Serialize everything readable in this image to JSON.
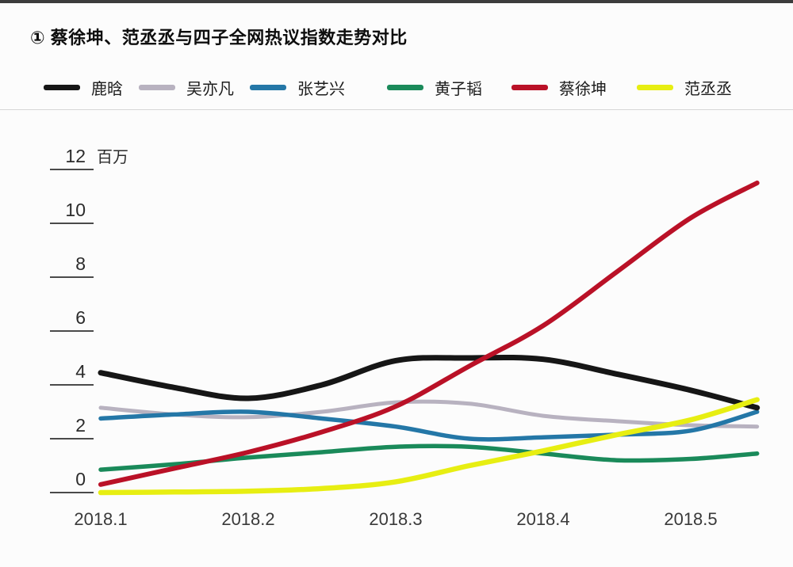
{
  "title": "① 蔡徐坤、范丞丞与四子全网热议指数走势对比",
  "legend": [
    {
      "label": "鹿晗",
      "color": "#161616"
    },
    {
      "label": "吴亦凡",
      "color": "#b8b2c0"
    },
    {
      "label": "张艺兴",
      "color": "#2477a7"
    },
    {
      "label": "黄子韬",
      "color": "#1a8a5a"
    },
    {
      "label": "蔡徐坤",
      "color": "#ba1127"
    },
    {
      "label": "范丞丞",
      "color": "#e7ee12"
    }
  ],
  "chart_data": {
    "type": "line",
    "title": "蔡徐坤、范丞丞与四子全网热议指数走势对比",
    "unit_label": "百万",
    "x": [
      2018.1,
      2018.15,
      2018.2,
      2018.25,
      2018.3,
      2018.35,
      2018.4,
      2018.45,
      2018.5,
      2018.55
    ],
    "x_tick_labels": [
      "2018.1",
      "2018.2",
      "2018.3",
      "2018.4",
      "2018.5"
    ],
    "y_ticks": [
      "0",
      "2",
      "4",
      "6",
      "8",
      "10",
      "12"
    ],
    "ylim": [
      0,
      12
    ],
    "grid": "left-ticks-only",
    "legend_position": "top",
    "series": [
      {
        "name": "鹿晗",
        "color": "#161616",
        "width": 7,
        "values": [
          4.45,
          3.9,
          3.5,
          4.0,
          4.9,
          5.0,
          4.95,
          4.4,
          3.8,
          3.15
        ]
      },
      {
        "name": "吴亦凡",
        "color": "#b8b2c0",
        "width": 5,
        "values": [
          3.15,
          2.9,
          2.8,
          3.0,
          3.35,
          3.3,
          2.85,
          2.65,
          2.5,
          2.45
        ]
      },
      {
        "name": "张艺兴",
        "color": "#2477a7",
        "width": 5.5,
        "values": [
          2.75,
          2.9,
          3.0,
          2.75,
          2.45,
          2.0,
          2.05,
          2.15,
          2.3,
          3.0
        ]
      },
      {
        "name": "黄子韬",
        "color": "#1a8a5a",
        "width": 5.5,
        "values": [
          0.85,
          1.05,
          1.3,
          1.5,
          1.7,
          1.7,
          1.45,
          1.2,
          1.25,
          1.45
        ]
      },
      {
        "name": "蔡徐坤",
        "color": "#ba1127",
        "width": 6,
        "values": [
          0.3,
          0.9,
          1.5,
          2.25,
          3.2,
          4.7,
          6.2,
          8.2,
          10.2,
          11.5
        ]
      },
      {
        "name": "范丞丞",
        "color": "#e7ee12",
        "width": 6.5,
        "values": [
          0.0,
          0.02,
          0.05,
          0.15,
          0.4,
          1.0,
          1.55,
          2.15,
          2.7,
          3.45
        ]
      }
    ]
  }
}
